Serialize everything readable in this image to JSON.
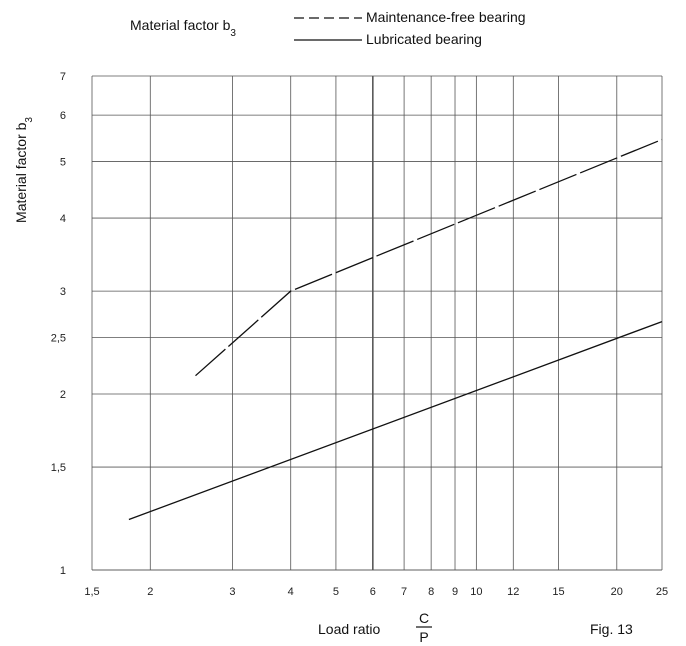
{
  "chart_data": {
    "type": "line",
    "title": "",
    "xlabel": "Load ratio",
    "xlabel_fraction": {
      "numerator": "C",
      "denominator": "P"
    },
    "ylabel": "Material factor b",
    "ylabel_subscript": "3",
    "figure_label": "Fig. 13",
    "x_scale": "log",
    "y_scale": "log",
    "xlim": [
      1.5,
      25
    ],
    "ylim": [
      1,
      7
    ],
    "grid": true,
    "legend_position": "top",
    "legend_title": "Material factor b",
    "legend_title_subscript": "3",
    "x_ticks": [
      1.5,
      2,
      3,
      4,
      5,
      6,
      7,
      8,
      9,
      10,
      12,
      15,
      20,
      25
    ],
    "x_tick_labels": [
      "1,5",
      "2",
      "3",
      "4",
      "5",
      "6",
      "7",
      "8",
      "9",
      "10",
      "12",
      "15",
      "20",
      "25"
    ],
    "y_ticks": [
      1,
      1.5,
      2,
      2.5,
      3,
      4,
      5,
      6,
      7
    ],
    "y_tick_labels": [
      "1",
      "1,5",
      "2",
      "2,5",
      "3",
      "4",
      "5",
      "6",
      "7"
    ],
    "series": [
      {
        "name": "Maintenance-free bearing",
        "style": "dashed",
        "color": "#111111",
        "points": [
          [
            2.5,
            2.15
          ],
          [
            4,
            3.0
          ],
          [
            25,
            5.45
          ]
        ]
      },
      {
        "name": "Lubricated bearing",
        "style": "solid",
        "color": "#111111",
        "points": [
          [
            1.8,
            1.22
          ],
          [
            25,
            2.66
          ]
        ]
      }
    ]
  }
}
